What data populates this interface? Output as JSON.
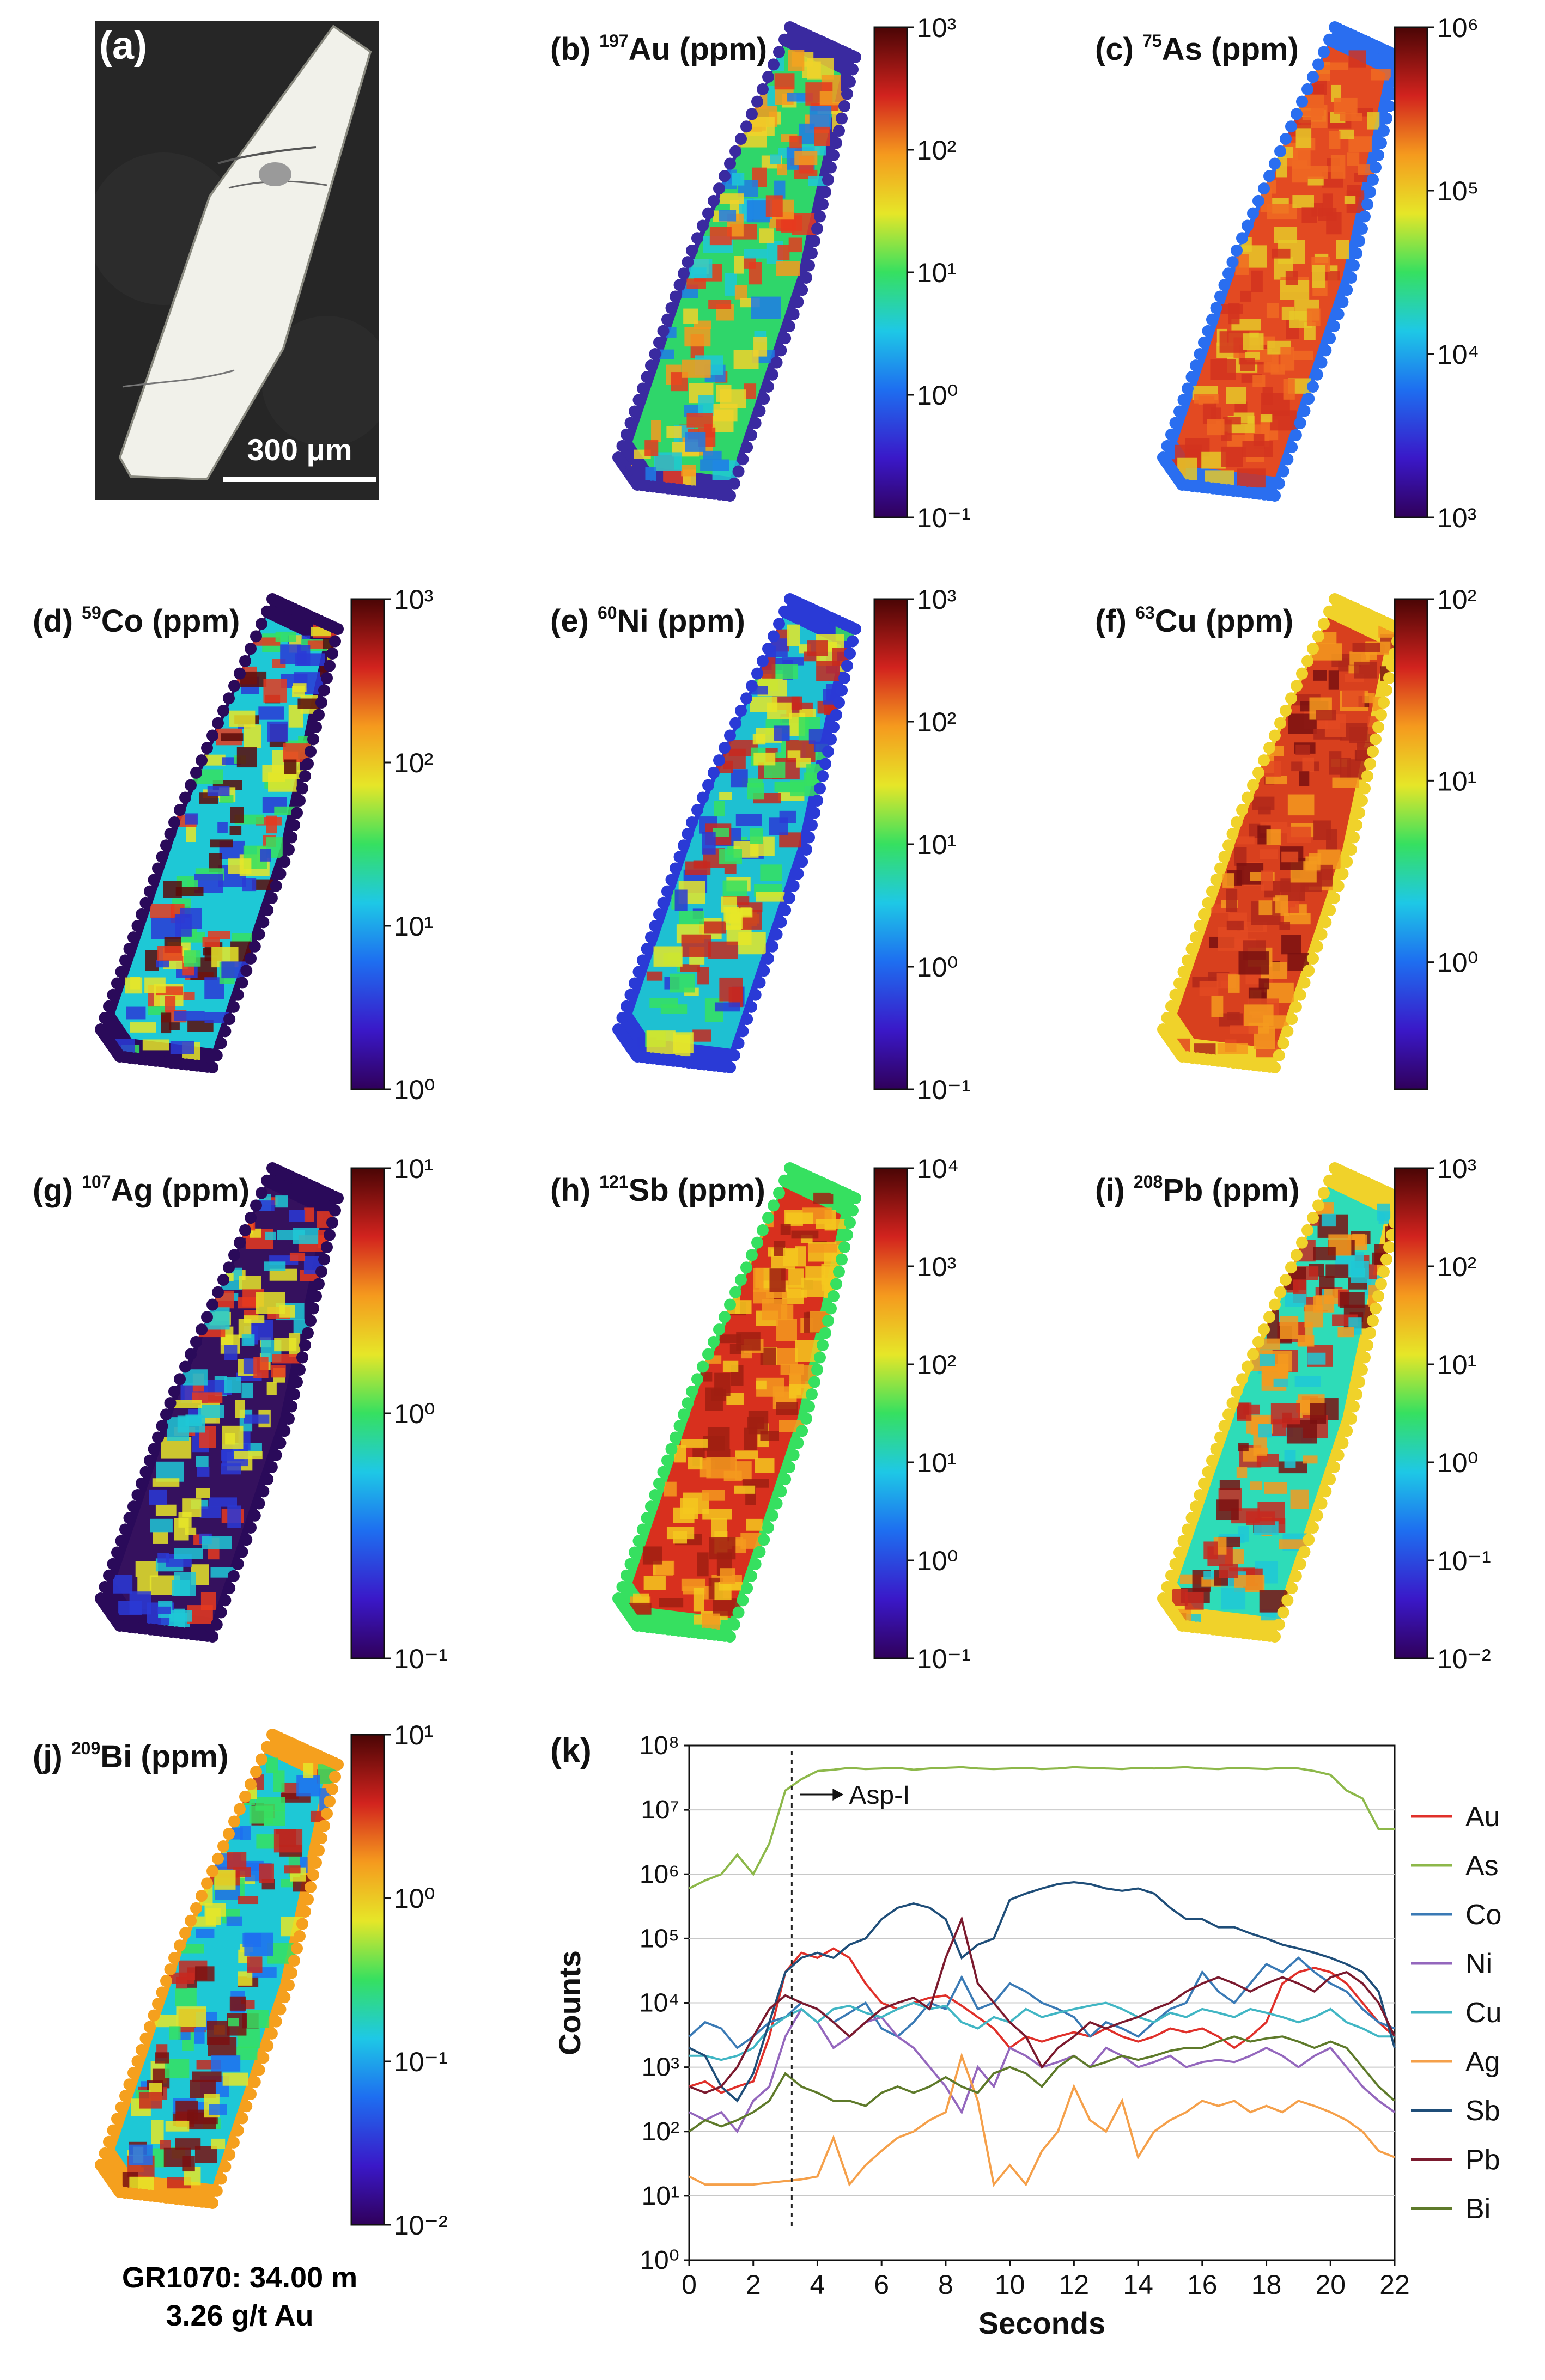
{
  "figure": {
    "caption_line1": "GR1070: 34.00 m",
    "caption_line2": "3.26 g/t Au",
    "scale_bar_label": "300 μm",
    "photo_label": "(a)"
  },
  "maps": [
    {
      "id": "b",
      "label": "(b)",
      "mass": "197",
      "element": "Au",
      "unit": "(ppm)",
      "exp_min": -1,
      "exp_max": 3,
      "theme": "au"
    },
    {
      "id": "c",
      "label": "(c)",
      "mass": "75",
      "element": "As",
      "unit": "(ppm)",
      "exp_min": 3,
      "exp_max": 6,
      "theme": "as"
    },
    {
      "id": "d",
      "label": "(d)",
      "mass": "59",
      "element": "Co",
      "unit": "(ppm)",
      "exp_min": 0,
      "exp_max": 3,
      "theme": "co"
    },
    {
      "id": "e",
      "label": "(e)",
      "mass": "60",
      "element": "Ni",
      "unit": "(ppm)",
      "exp_min": -1,
      "exp_max": 3,
      "theme": "ni"
    },
    {
      "id": "f",
      "label": "(f)",
      "mass": "63",
      "element": "Cu",
      "unit": "(ppm)",
      "exp_min": -0.7,
      "exp_max": 2,
      "ticks_exp": [
        0,
        1,
        2
      ],
      "theme": "cu"
    },
    {
      "id": "g",
      "label": "(g)",
      "mass": "107",
      "element": "Ag",
      "unit": "(ppm)",
      "exp_min": -1,
      "exp_max": 1,
      "theme": "ag"
    },
    {
      "id": "h",
      "label": "(h)",
      "mass": "121",
      "element": "Sb",
      "unit": "(ppm)",
      "exp_min": -1,
      "exp_max": 4,
      "theme": "sb"
    },
    {
      "id": "i",
      "label": "(i)",
      "mass": "208",
      "element": "Pb",
      "unit": "(ppm)",
      "exp_min": -2,
      "exp_max": 3,
      "theme": "pb"
    },
    {
      "id": "j",
      "label": "(j)",
      "mass": "209",
      "element": "Bi",
      "unit": "(ppm)",
      "exp_min": -2,
      "exp_max": 1,
      "theme": "bi"
    }
  ],
  "chart_data": {
    "type": "line",
    "panel_label": "(k)",
    "xlabel": "Seconds",
    "ylabel": "Counts",
    "xlim": [
      0,
      22
    ],
    "x_ticks": [
      0,
      2,
      4,
      6,
      8,
      10,
      12,
      14,
      16,
      18,
      20,
      22
    ],
    "ylim_exp": [
      0,
      8
    ],
    "y_scale": "log",
    "grid": "horizontal",
    "legend_position": "right",
    "annotation": {
      "text": "Asp-I",
      "x": 3.2
    },
    "x": [
      0,
      0.5,
      1,
      1.5,
      2,
      2.5,
      3,
      3.5,
      4,
      4.5,
      5,
      5.5,
      6,
      6.5,
      7,
      7.5,
      8,
      8.5,
      9,
      9.5,
      10,
      10.5,
      11,
      11.5,
      12,
      12.5,
      13,
      13.5,
      14,
      14.5,
      15,
      15.5,
      16,
      16.5,
      17,
      17.5,
      18,
      18.5,
      19,
      19.5,
      20,
      20.5,
      21,
      21.5,
      22
    ],
    "series": [
      {
        "name": "Au",
        "color": "#e0302a",
        "values": [
          500.0,
          600.0,
          400.0,
          500.0,
          600.0,
          3000.0,
          30000.0,
          60000.0,
          50000.0,
          70000.0,
          50000.0,
          20000.0,
          10000.0,
          8000.0,
          10000.0,
          12000.0,
          13000.0,
          9000.0,
          6000.0,
          4000.0,
          2000.0,
          3000.0,
          2500.0,
          3000.0,
          3500.0,
          3000.0,
          4000.0,
          3000.0,
          2500.0,
          3000.0,
          4000.0,
          3500.0,
          4000.0,
          3000.0,
          2000.0,
          3000.0,
          5000.0,
          20000.0,
          30000.0,
          35000.0,
          30000.0,
          20000.0,
          10000.0,
          5000.0,
          3000.0
        ]
      },
      {
        "name": "As",
        "color": "#8db84a",
        "values": [
          600000.0,
          800000.0,
          1000000.0,
          2000000.0,
          1000000.0,
          3000000.0,
          20000000.0,
          30000000.0,
          40000000.0,
          42000000.0,
          45000000.0,
          43000000.0,
          44000000.0,
          45000000.0,
          42000000.0,
          44000000.0,
          45000000.0,
          46000000.0,
          44000000.0,
          43000000.0,
          44000000.0,
          45000000.0,
          43000000.0,
          44000000.0,
          46000000.0,
          45000000.0,
          44000000.0,
          43000000.0,
          45000000.0,
          44000000.0,
          45000000.0,
          46000000.0,
          44000000.0,
          43000000.0,
          45000000.0,
          44000000.0,
          43000000.0,
          45000000.0,
          44000000.0,
          40000000.0,
          35000000.0,
          20000000.0,
          15000000.0,
          5000000.0,
          5000000.0
        ]
      },
      {
        "name": "Co",
        "color": "#3a7ab5",
        "values": [
          3000.0,
          5000.0,
          4000.0,
          2000.0,
          3000.0,
          5000.0,
          6000.0,
          10000.0,
          8000.0,
          5000.0,
          7000.0,
          10000.0,
          4000.0,
          3000.0,
          5000.0,
          10000.0,
          8000.0,
          25000.0,
          8000.0,
          10000.0,
          20000.0,
          15000.0,
          10000.0,
          8000.0,
          6000.0,
          3000.0,
          5000.0,
          4000.0,
          3000.0,
          5000.0,
          8000.0,
          10000.0,
          30000.0,
          15000.0,
          10000.0,
          20000.0,
          40000.0,
          30000.0,
          50000.0,
          30000.0,
          20000.0,
          15000.0,
          8000.0,
          5000.0,
          4000.0
        ]
      },
      {
        "name": "Ni",
        "color": "#9467bd",
        "values": [
          200.0,
          150.0,
          200.0,
          100.0,
          300.0,
          500.0,
          3000.0,
          8000.0,
          5000.0,
          2000.0,
          3000.0,
          5000.0,
          6000.0,
          3000.0,
          2000.0,
          1000.0,
          500.0,
          200.0,
          1000.0,
          500.0,
          2000.0,
          1500.0,
          1000.0,
          1200.0,
          1500.0,
          1000.0,
          2000.0,
          1500.0,
          1000.0,
          1200.0,
          1500.0,
          1000.0,
          1200.0,
          1300.0,
          1200.0,
          1500.0,
          2000.0,
          1500.0,
          1000.0,
          1500.0,
          2000.0,
          1000.0,
          500.0,
          300.0,
          200.0
        ]
      },
      {
        "name": "Cu",
        "color": "#41b6c4",
        "values": [
          1500.0,
          1500.0,
          1300.0,
          1500.0,
          2000.0,
          4000.0,
          6000.0,
          8000.0,
          5000.0,
          8000.0,
          9000.0,
          7000.0,
          6000.0,
          8000.0,
          10000.0,
          8000.0,
          9000.0,
          5000.0,
          4000.0,
          6000.0,
          5000.0,
          8000.0,
          6000.0,
          7000.0,
          8000.0,
          9000.0,
          10000.0,
          8000.0,
          6000.0,
          5000.0,
          7000.0,
          6000.0,
          8000.0,
          7000.0,
          6000.0,
          8000.0,
          7000.0,
          6000.0,
          5000.0,
          6000.0,
          8000.0,
          5000.0,
          4000.0,
          3000.0,
          3000.0
        ]
      },
      {
        "name": "Ag",
        "color": "#f5a04a",
        "values": [
          20.0,
          15.0,
          15.0,
          15.0,
          15.0,
          16.0,
          17.0,
          18.0,
          20.0,
          80.0,
          15.0,
          30.0,
          50.0,
          80.0,
          100.0,
          150.0,
          200.0,
          1500.0,
          300.0,
          15.0,
          30.0,
          15.0,
          50.0,
          100.0,
          500.0,
          150.0,
          100.0,
          300.0,
          40.0,
          100.0,
          150.0,
          200.0,
          300.0,
          250.0,
          300.0,
          200.0,
          250.0,
          200.0,
          300.0,
          250.0,
          200.0,
          150.0,
          100.0,
          50.0,
          40.0
        ]
      },
      {
        "name": "Sb",
        "color": "#1f4e79",
        "values": [
          2000.0,
          1500.0,
          500.0,
          300.0,
          800.0,
          5000.0,
          30000.0,
          50000.0,
          60000.0,
          50000.0,
          80000.0,
          100000.0,
          200000.0,
          300000.0,
          350000.0,
          300000.0,
          200000.0,
          50000.0,
          80000.0,
          100000.0,
          400000.0,
          500000.0,
          600000.0,
          700000.0,
          750000.0,
          700000.0,
          600000.0,
          550000.0,
          600000.0,
          500000.0,
          300000.0,
          200000.0,
          200000.0,
          150000.0,
          150000.0,
          120000.0,
          100000.0,
          80000.0,
          70000.0,
          60000.0,
          50000.0,
          40000.0,
          30000.0,
          15000.0,
          2000.0
        ]
      },
      {
        "name": "Pb",
        "color": "#7b1a2e",
        "values": [
          500.0,
          400.0,
          500.0,
          1000.0,
          3000.0,
          8000.0,
          13000.0,
          10000.0,
          8000.0,
          5000.0,
          3000.0,
          5000.0,
          8000.0,
          10000.0,
          12000.0,
          8000.0,
          50000.0,
          200000.0,
          20000.0,
          10000.0,
          5000.0,
          3000.0,
          1000.0,
          2000.0,
          3000.0,
          5000.0,
          4000.0,
          5000.0,
          6000.0,
          8000.0,
          10000.0,
          15000.0,
          20000.0,
          25000.0,
          20000.0,
          15000.0,
          20000.0,
          25000.0,
          20000.0,
          15000.0,
          25000.0,
          30000.0,
          20000.0,
          10000.0,
          3000.0
        ]
      },
      {
        "name": "Bi",
        "color": "#5e7a2a",
        "values": [
          100.0,
          150.0,
          120.0,
          150.0,
          200.0,
          300.0,
          800.0,
          500.0,
          400.0,
          300.0,
          300.0,
          250.0,
          400.0,
          500.0,
          400.0,
          500.0,
          700.0,
          500.0,
          400.0,
          800.0,
          1000.0,
          800.0,
          500.0,
          1000.0,
          1500.0,
          1000.0,
          1200.0,
          1500.0,
          1300.0,
          1500.0,
          1800.0,
          2000.0,
          2000.0,
          2500.0,
          3000.0,
          2500.0,
          2800.0,
          3000.0,
          2500.0,
          2000.0,
          2500.0,
          2000.0,
          1000.0,
          500.0,
          300.0
        ]
      }
    ]
  }
}
